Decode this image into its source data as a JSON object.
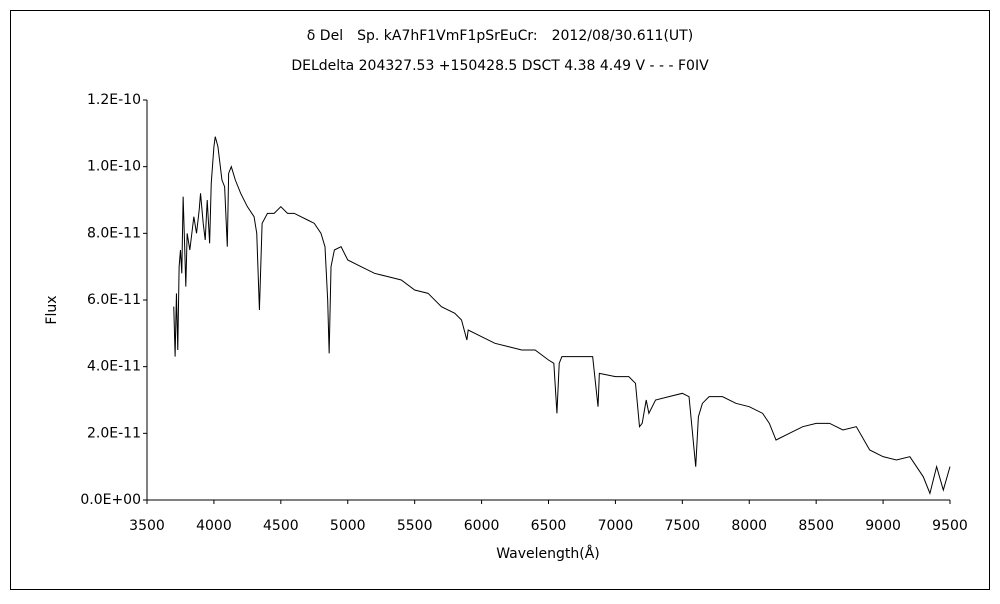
{
  "chart_data": {
    "type": "line",
    "title": "δ Del　Sp. kA7hF1VmF1pSrEuCr:　2012/08/30.611(UT)",
    "subtitle": "DELdelta 204327.53 +150428.5 DSCT 4.38 4.49 V - - - F0IV",
    "x_label": "Wavelength(Å)",
    "y_label": "Flux",
    "color": "#000000",
    "grid": false,
    "x": [
      3700,
      3710,
      3720,
      3730,
      3740,
      3750,
      3760,
      3770,
      3780,
      3790,
      3800,
      3820,
      3850,
      3870,
      3890,
      3900,
      3920,
      3935,
      3950,
      3968,
      3980,
      4000,
      4010,
      4030,
      4060,
      4080,
      4100,
      4110,
      4130,
      4160,
      4200,
      4250,
      4300,
      4320,
      4340,
      4360,
      4400,
      4450,
      4500,
      4550,
      4600,
      4650,
      4700,
      4750,
      4800,
      4830,
      4850,
      4861,
      4875,
      4900,
      4950,
      5000,
      5100,
      5200,
      5300,
      5400,
      5500,
      5600,
      5700,
      5800,
      5850,
      5890,
      5900,
      6000,
      6100,
      6200,
      6300,
      6400,
      6500,
      6540,
      6563,
      6580,
      6600,
      6700,
      6830,
      6870,
      6880,
      7000,
      7100,
      7150,
      7180,
      7200,
      7230,
      7250,
      7300,
      7400,
      7500,
      7550,
      7600,
      7620,
      7650,
      7700,
      7800,
      7900,
      8000,
      8100,
      8150,
      8200,
      8300,
      8400,
      8500,
      8600,
      8700,
      8800,
      8900,
      9000,
      9100,
      9200,
      9300,
      9350,
      9400,
      9450,
      9500
    ],
    "values": [
      5.8e-11,
      4.3e-11,
      6.2e-11,
      4.5e-11,
      7e-11,
      7.5e-11,
      6.8e-11,
      9.1e-11,
      7.8e-11,
      6.4e-11,
      8e-11,
      7.5e-11,
      8.5e-11,
      8e-11,
      8.7e-11,
      9.2e-11,
      8.3e-11,
      7.8e-11,
      9e-11,
      7.7e-11,
      9.5e-11,
      1.06e-10,
      1.09e-10,
      1.06e-10,
      9.6e-11,
      9.4e-11,
      7.6e-11,
      9.8e-11,
      1e-10,
      9.6e-11,
      9.2e-11,
      8.8e-11,
      8.5e-11,
      8e-11,
      5.7e-11,
      8.3e-11,
      8.6e-11,
      8.6e-11,
      8.8e-11,
      8.6e-11,
      8.6e-11,
      8.5e-11,
      8.4e-11,
      8.3e-11,
      8e-11,
      7.6e-11,
      6e-11,
      4.4e-11,
      7e-11,
      7.5e-11,
      7.6e-11,
      7.2e-11,
      7e-11,
      6.8e-11,
      6.7e-11,
      6.6e-11,
      6.3e-11,
      6.2e-11,
      5.8e-11,
      5.6e-11,
      5.4e-11,
      4.8e-11,
      5.1e-11,
      4.9e-11,
      4.7e-11,
      4.6e-11,
      4.5e-11,
      4.5e-11,
      4.2e-11,
      4.1e-11,
      2.6e-11,
      4.1e-11,
      4.3e-11,
      4.3e-11,
      4.3e-11,
      2.8e-11,
      3.8e-11,
      3.7e-11,
      3.7e-11,
      3.5e-11,
      2.2e-11,
      2.3e-11,
      3e-11,
      2.6e-11,
      3e-11,
      3.1e-11,
      3.2e-11,
      3.1e-11,
      1e-11,
      2.5e-11,
      2.9e-11,
      3.1e-11,
      3.1e-11,
      2.9e-11,
      2.8e-11,
      2.6e-11,
      2.3e-11,
      1.8e-11,
      2e-11,
      2.2e-11,
      2.3e-11,
      2.3e-11,
      2.1e-11,
      2.2e-11,
      1.5e-11,
      1.3e-11,
      1.2e-11,
      1.3e-11,
      7e-12,
      2e-12,
      1e-11,
      3e-12,
      1e-11
    ],
    "xlim": [
      3500,
      9500
    ],
    "xticks": [
      3500,
      4000,
      4500,
      5000,
      5500,
      6000,
      6500,
      7000,
      7500,
      8000,
      8500,
      9000,
      9500
    ],
    "ylim": [
      0,
      1.2e-10
    ],
    "yticks": [
      {
        "value": 0,
        "label": "0.0E+00"
      },
      {
        "value": 2e-11,
        "label": "2.0E-11"
      },
      {
        "value": 4e-11,
        "label": "4.0E-11"
      },
      {
        "value": 6e-11,
        "label": "6.0E-11"
      },
      {
        "value": 8e-11,
        "label": "8.0E-11"
      },
      {
        "value": 1e-10,
        "label": "1.0E-10"
      },
      {
        "value": 1.2e-10,
        "label": "1.2E-10"
      }
    ]
  }
}
